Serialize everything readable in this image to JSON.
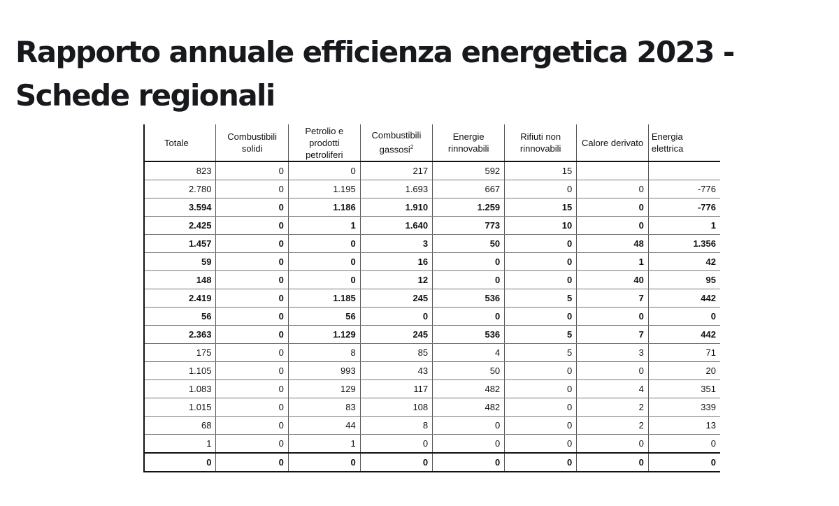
{
  "page_title": "Rapporto annuale efficienza energetica 2023 - Schede regionali",
  "table": {
    "headers": [
      "Totale",
      "Combustibili solidi",
      "Petrolio e prodotti petroliferi",
      "Combustibili gassosi",
      "Energie rinnovabili",
      "Rifiuti non rinnovabili",
      "Calore derivato",
      "Energia elettrica"
    ],
    "gas_header_footnote": "2",
    "rows": [
      {
        "bold": false,
        "cells": [
          "823",
          "0",
          "0",
          "217",
          "592",
          "15",
          "",
          ""
        ]
      },
      {
        "bold": false,
        "cells": [
          "2.780",
          "0",
          "1.195",
          "1.693",
          "667",
          "0",
          "0",
          "-776"
        ]
      },
      {
        "bold": true,
        "cells": [
          "3.594",
          "0",
          "1.186",
          "1.910",
          "1.259",
          "15",
          "0",
          "-776"
        ]
      },
      {
        "bold": true,
        "cells": [
          "2.425",
          "0",
          "1",
          "1.640",
          "773",
          "10",
          "0",
          "1"
        ]
      },
      {
        "bold": true,
        "cells": [
          "1.457",
          "0",
          "0",
          "3",
          "50",
          "0",
          "48",
          "1.356"
        ]
      },
      {
        "bold": true,
        "cells": [
          "59",
          "0",
          "0",
          "16",
          "0",
          "0",
          "1",
          "42"
        ]
      },
      {
        "bold": true,
        "cells": [
          "148",
          "0",
          "0",
          "12",
          "0",
          "0",
          "40",
          "95"
        ]
      },
      {
        "bold": true,
        "cells": [
          "2.419",
          "0",
          "1.185",
          "245",
          "536",
          "5",
          "7",
          "442"
        ]
      },
      {
        "bold": true,
        "cells": [
          "56",
          "0",
          "56",
          "0",
          "0",
          "0",
          "0",
          "0"
        ]
      },
      {
        "bold": true,
        "cells": [
          "2.363",
          "0",
          "1.129",
          "245",
          "536",
          "5",
          "7",
          "442"
        ]
      },
      {
        "bold": false,
        "cells": [
          "175",
          "0",
          "8",
          "85",
          "4",
          "5",
          "3",
          "71"
        ]
      },
      {
        "bold": false,
        "cells": [
          "1.105",
          "0",
          "993",
          "43",
          "50",
          "0",
          "0",
          "20"
        ]
      },
      {
        "bold": false,
        "cells": [
          "1.083",
          "0",
          "129",
          "117",
          "482",
          "0",
          "4",
          "351"
        ]
      },
      {
        "bold": false,
        "cells": [
          "1.015",
          "0",
          "83",
          "108",
          "482",
          "0",
          "2",
          "339"
        ]
      },
      {
        "bold": false,
        "cells": [
          "68",
          "0",
          "44",
          "8",
          "0",
          "0",
          "2",
          "13"
        ]
      },
      {
        "bold": false,
        "cells": [
          "1",
          "0",
          "1",
          "0",
          "0",
          "0",
          "0",
          "0"
        ]
      },
      {
        "bold": true,
        "cells": [
          "0",
          "0",
          "0",
          "0",
          "0",
          "0",
          "0",
          "0"
        ]
      }
    ]
  }
}
